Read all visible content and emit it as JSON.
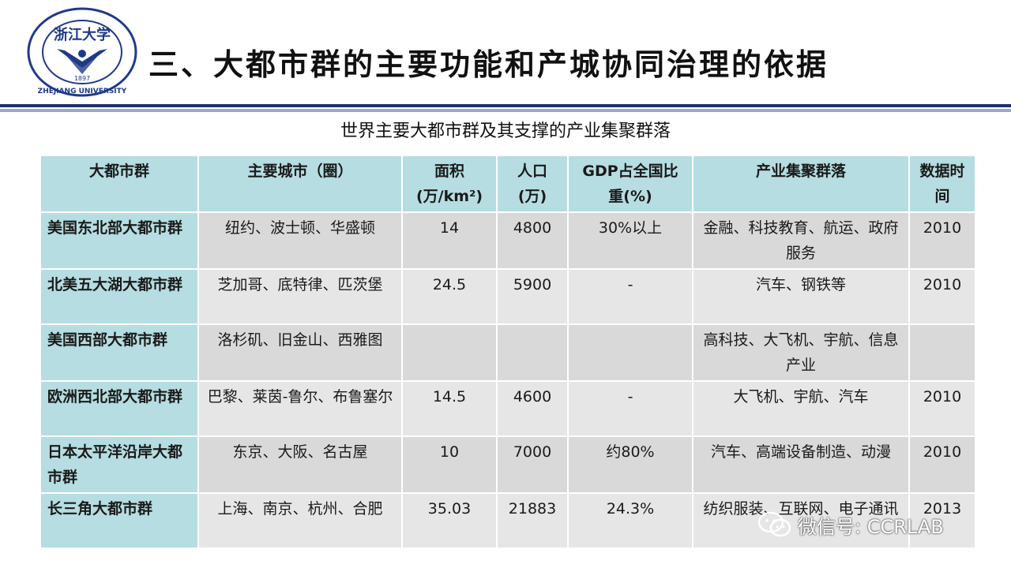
{
  "slide": {
    "title": "三、大都市群的主要功能和产城协同治理的依据",
    "subtitle": "世界主要大都市群及其支撑的产业集聚群落"
  },
  "logo": {
    "icon": "zhejiang-university-emblem",
    "color": "#1f3a8a",
    "text_chinese": "浙江大学",
    "text_english": "ZHEJIANG UNIVERSITY",
    "year": "1897"
  },
  "table": {
    "headers": [
      "大都市群",
      "主要城市（圈）",
      "面积(万/km²)",
      "人口(万)",
      "GDP占全国比重(%)",
      "产业集聚群落",
      "数据时间"
    ],
    "rows": [
      {
        "region": "美国东北部大都市群",
        "cities": "纽约、波士顿、华盛顿",
        "area": "14",
        "population": "4800",
        "gdp_share": "30%以上",
        "industries": "金融、科技教育、航运、政府服务",
        "year": "2010"
      },
      {
        "region": "北美五大湖大都市群",
        "cities": "芝加哥、底特律、匹茨堡",
        "area": "24.5",
        "population": "5900",
        "gdp_share": "-",
        "industries": "汽车、钢铁等",
        "year": "2010"
      },
      {
        "region": "美国西部大都市群",
        "cities": "洛杉矶、旧金山、西雅图",
        "area": "",
        "population": "",
        "gdp_share": "",
        "industries": "高科技、大飞机、宇航、信息产业",
        "year": ""
      },
      {
        "region": "欧洲西北部大都市群",
        "cities": "巴黎、莱茵-鲁尔、布鲁塞尔",
        "area": "14.5",
        "population": "4600",
        "gdp_share": "-",
        "industries": "大飞机、宇航、汽车",
        "year": "2010"
      },
      {
        "region": "日本太平洋沿岸大都市群",
        "cities": "东京、大阪、名古屋",
        "area": "10",
        "population": "7000",
        "gdp_share": "约80%",
        "industries": "汽车、高端设备制造、动漫",
        "year": "2010"
      },
      {
        "region": "长三角大都市群",
        "cities": "上海、南京、杭州、合肥",
        "area": "35.03",
        "population": "21883",
        "gdp_share": "24.3%",
        "industries": "纺织服装、互联网、电子通讯",
        "year": "2013"
      }
    ]
  },
  "watermark": {
    "icon": "wechat-icon",
    "text": "微信号: CCRLAB"
  },
  "colors": {
    "header_bg": "#b6dde1",
    "row_bg": "#e6e6e6",
    "row_alt_bg": "#d9d9d9",
    "rule_dark": "#1f2f6b",
    "rule_light": "#9aa7c4"
  }
}
